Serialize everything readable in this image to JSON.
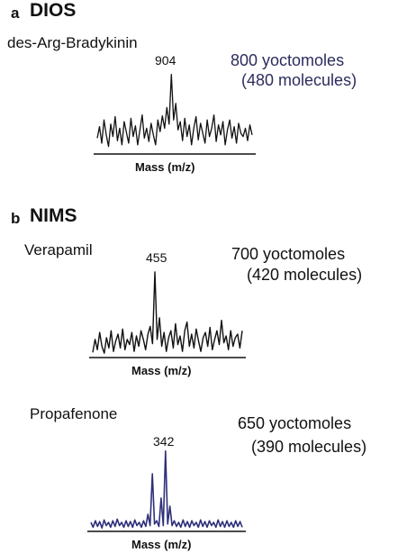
{
  "panel_a": {
    "letter": "a",
    "method": "DIOS",
    "compound": "des-Arg-Bradykinin",
    "amount_line1": "800 yoctomoles",
    "amount_line2": "(480 molecules)",
    "peak_label": "904",
    "xlabel": "Mass (m/z)"
  },
  "panel_b": {
    "letter": "b",
    "method": "NIMS",
    "verapamil": {
      "compound": "Verapamil",
      "amount_line1": "700 yoctomoles",
      "amount_line2": "(420 molecules)",
      "peak_label": "455",
      "xlabel": "Mass (m/z)"
    },
    "propafenone": {
      "compound": "Propafenone",
      "amount_line1": "650 yoctomoles",
      "amount_line2": "(390 molecules)",
      "peak_label": "342",
      "xlabel": "Mass (m/z)"
    }
  },
  "colors": {
    "text": "#111111",
    "amount_a": "#2c2c5e",
    "trace_dark": "#111111",
    "trace_navy": "#2f2f7a"
  },
  "chart_data": [
    {
      "type": "line",
      "title": "DIOS des-Arg-Bradykinin",
      "xlabel": "Mass (m/z)",
      "peak_label": "904",
      "values": [
        0.18,
        0.32,
        0.12,
        0.4,
        0.22,
        0.08,
        0.35,
        0.2,
        0.44,
        0.15,
        0.3,
        0.1,
        0.38,
        0.25,
        0.12,
        0.42,
        0.2,
        0.33,
        0.1,
        0.28,
        0.46,
        0.18,
        0.3,
        0.14,
        0.36,
        0.22,
        0.1,
        0.4,
        0.26,
        0.45,
        0.3,
        0.55,
        0.35,
        0.95,
        0.4,
        0.6,
        0.28,
        0.38,
        0.15,
        0.42,
        0.2,
        0.34,
        0.1,
        0.3,
        0.44,
        0.16,
        0.36,
        0.24,
        0.12,
        0.4,
        0.2,
        0.3,
        0.46,
        0.14,
        0.34,
        0.22,
        0.38,
        0.1,
        0.28,
        0.4,
        0.18,
        0.32,
        0.12,
        0.36,
        0.24,
        0.2,
        0.3,
        0.15,
        0.34,
        0.22
      ]
    },
    {
      "type": "line",
      "title": "NIMS Verapamil",
      "xlabel": "Mass (m/z)",
      "peak_label": "455",
      "values": [
        0.05,
        0.2,
        0.08,
        0.28,
        0.12,
        0.04,
        0.22,
        0.1,
        0.3,
        0.06,
        0.18,
        0.26,
        0.1,
        0.32,
        0.08,
        0.2,
        0.14,
        0.28,
        0.06,
        0.24,
        0.12,
        0.3,
        0.2,
        0.08,
        0.26,
        0.35,
        0.15,
        0.98,
        0.2,
        0.45,
        0.12,
        0.28,
        0.06,
        0.22,
        0.3,
        0.1,
        0.38,
        0.14,
        0.24,
        0.06,
        0.3,
        0.4,
        0.12,
        0.26,
        0.1,
        0.32,
        0.18,
        0.06,
        0.22,
        0.28,
        0.12,
        0.34,
        0.08,
        0.2,
        0.3,
        0.14,
        0.42,
        0.16,
        0.24,
        0.08,
        0.3,
        0.12,
        0.22,
        0.26,
        0.1,
        0.3
      ]
    },
    {
      "type": "line",
      "title": "NIMS Propafenone",
      "xlabel": "Mass (m/z)",
      "peak_label": "342",
      "values": [
        0.1,
        0.04,
        0.12,
        0.05,
        0.11,
        0.03,
        0.13,
        0.06,
        0.1,
        0.04,
        0.12,
        0.05,
        0.14,
        0.06,
        0.1,
        0.04,
        0.12,
        0.05,
        0.11,
        0.04,
        0.13,
        0.06,
        0.1,
        0.04,
        0.12,
        0.05,
        0.2,
        0.06,
        0.7,
        0.08,
        0.12,
        0.05,
        0.4,
        0.06,
        0.98,
        0.08,
        0.3,
        0.06,
        0.12,
        0.05,
        0.1,
        0.04,
        0.13,
        0.05,
        0.11,
        0.04,
        0.12,
        0.06,
        0.1,
        0.04,
        0.13,
        0.05,
        0.11,
        0.04,
        0.12,
        0.06,
        0.1,
        0.04,
        0.13,
        0.05,
        0.11,
        0.04,
        0.12,
        0.05,
        0.1,
        0.04,
        0.12,
        0.05,
        0.11,
        0.04
      ]
    }
  ]
}
